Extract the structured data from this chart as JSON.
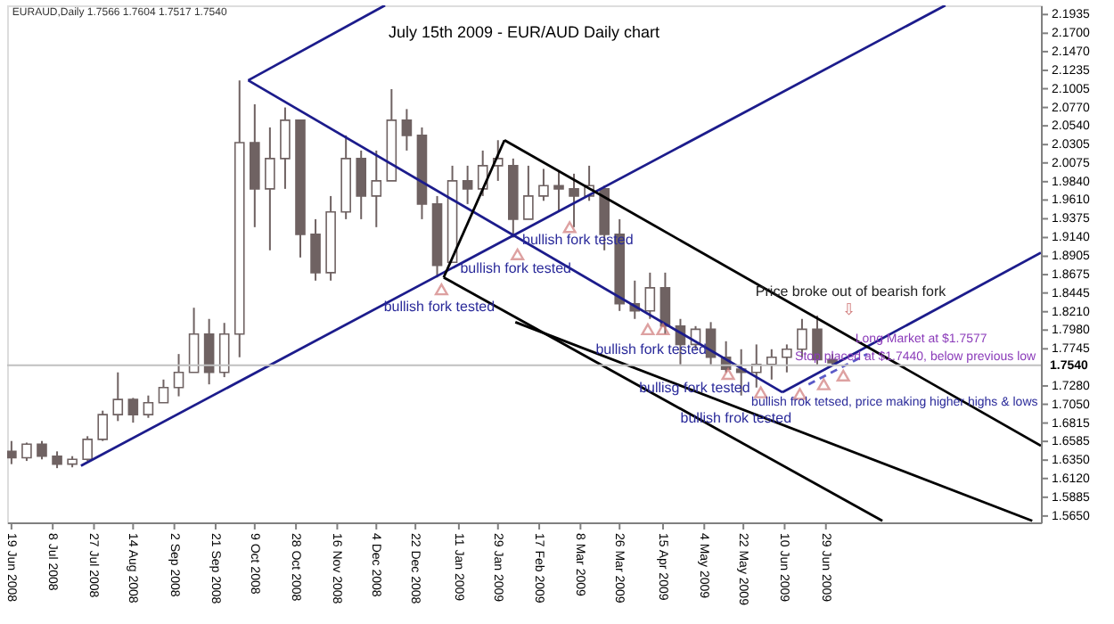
{
  "chart_data": {
    "type": "candlestick",
    "title": "July 15th 2009 - EUR/AUD Daily chart",
    "color": "#6f6262",
    "x": [
      "2008-06-19",
      "2008-06-26",
      "2008-07-03",
      "2008-07-10",
      "2008-07-17",
      "2008-07-24",
      "2008-07-31",
      "2008-08-07",
      "2008-08-14",
      "2008-08-21",
      "2008-08-28",
      "2008-09-04",
      "2008-09-11",
      "2008-09-18",
      "2008-09-25",
      "2008-10-02",
      "2008-10-09",
      "2008-10-16",
      "2008-10-23",
      "2008-10-30",
      "2008-11-06",
      "2008-11-13",
      "2008-11-20",
      "2008-11-27",
      "2008-12-04",
      "2008-12-11",
      "2008-12-18",
      "2008-12-25",
      "2009-01-01",
      "2009-01-08",
      "2009-01-15",
      "2009-01-22",
      "2009-01-29",
      "2009-02-05",
      "2009-02-12",
      "2009-02-19",
      "2009-02-26",
      "2009-03-05",
      "2009-03-12",
      "2009-03-19",
      "2009-03-26",
      "2009-04-02",
      "2009-04-09",
      "2009-04-16",
      "2009-04-23",
      "2009-04-30",
      "2009-05-07",
      "2009-05-14",
      "2009-05-21",
      "2009-05-28",
      "2009-06-04",
      "2009-06-11",
      "2009-06-18",
      "2009-06-25",
      "2009-07-02"
    ],
    "ohlc": [
      [
        1.646,
        1.659,
        1.63,
        1.638
      ],
      [
        1.638,
        1.657,
        1.634,
        1.655
      ],
      [
        1.655,
        1.659,
        1.636,
        1.64
      ],
      [
        1.64,
        1.646,
        1.625,
        1.63
      ],
      [
        1.63,
        1.64,
        1.626,
        1.636
      ],
      [
        1.636,
        1.665,
        1.634,
        1.661
      ],
      [
        1.661,
        1.697,
        1.659,
        1.692
      ],
      [
        1.692,
        1.745,
        1.684,
        1.711
      ],
      [
        1.711,
        1.713,
        1.682,
        1.692
      ],
      [
        1.692,
        1.716,
        1.688,
        1.707
      ],
      [
        1.707,
        1.736,
        1.707,
        1.726
      ],
      [
        1.726,
        1.768,
        1.715,
        1.745
      ],
      [
        1.745,
        1.826,
        1.745,
        1.793
      ],
      [
        1.793,
        1.812,
        1.73,
        1.745
      ],
      [
        1.745,
        1.807,
        1.739,
        1.793
      ],
      [
        1.793,
        2.111,
        1.764,
        2.033
      ],
      [
        2.033,
        2.081,
        1.927,
        1.975
      ],
      [
        1.975,
        2.052,
        1.898,
        2.013
      ],
      [
        2.013,
        2.077,
        1.975,
        2.061
      ],
      [
        2.061,
        2.061,
        1.889,
        1.918
      ],
      [
        1.918,
        1.937,
        1.86,
        1.87
      ],
      [
        1.87,
        1.966,
        1.86,
        1.946
      ],
      [
        1.946,
        2.042,
        1.937,
        2.013
      ],
      [
        2.013,
        2.023,
        1.937,
        1.966
      ],
      [
        1.966,
        2.023,
        1.927,
        1.985
      ],
      [
        1.985,
        2.1,
        1.985,
        2.061
      ],
      [
        2.061,
        2.075,
        2.023,
        2.042
      ],
      [
        2.042,
        2.052,
        1.937,
        1.956
      ],
      [
        1.956,
        1.966,
        1.864,
        1.879
      ],
      [
        1.883,
        2.004,
        1.883,
        1.985
      ],
      [
        1.985,
        2.004,
        1.956,
        1.975
      ],
      [
        1.975,
        2.023,
        1.966,
        2.004
      ],
      [
        2.004,
        2.036,
        1.985,
        2.013
      ],
      [
        2.004,
        2.013,
        1.914,
        1.937
      ],
      [
        1.937,
        2.004,
        1.937,
        1.966
      ],
      [
        1.966,
        2.0,
        1.96,
        1.979
      ],
      [
        1.979,
        1.998,
        1.946,
        1.975
      ],
      [
        1.975,
        1.994,
        1.927,
        1.966
      ],
      [
        1.966,
        2.004,
        1.96,
        1.979
      ],
      [
        1.975,
        1.979,
        1.898,
        1.918
      ],
      [
        1.918,
        1.937,
        1.822,
        1.831
      ],
      [
        1.831,
        1.86,
        1.812,
        1.822
      ],
      [
        1.822,
        1.87,
        1.812,
        1.851
      ],
      [
        1.851,
        1.87,
        1.793,
        1.803
      ],
      [
        1.803,
        1.812,
        1.755,
        1.78
      ],
      [
        1.78,
        1.803,
        1.774,
        1.799
      ],
      [
        1.799,
        1.808,
        1.755,
        1.764
      ],
      [
        1.764,
        1.784,
        1.745,
        1.749
      ],
      [
        1.749,
        1.774,
        1.716,
        1.745
      ],
      [
        1.745,
        1.78,
        1.726,
        1.755
      ],
      [
        1.755,
        1.774,
        1.736,
        1.764
      ],
      [
        1.764,
        1.78,
        1.745,
        1.774
      ],
      [
        1.774,
        1.812,
        1.764,
        1.799
      ],
      [
        1.799,
        1.816,
        1.755,
        1.761
      ],
      [
        1.761,
        1.768,
        1.753,
        1.757
      ]
    ],
    "series": [
      {
        "type": "line",
        "color": "#1c1c8c",
        "x": [
          "2008-07-21",
          "2009-08-23"
        ],
        "values": [
          1.628,
          2.205
        ]
      },
      {
        "type": "line",
        "color": "#1c1c8c",
        "x": [
          "2008-10-06",
          "2008-12-08"
        ],
        "values": [
          2.111,
          2.205
        ]
      },
      {
        "type": "line",
        "color": "#1c1c8c",
        "x": [
          "2008-10-06",
          "2009-06-09"
        ],
        "values": [
          2.111,
          1.72
        ]
      },
      {
        "type": "line",
        "color": "#1c1c8c",
        "x": [
          "2009-06-09",
          "2009-10-06"
        ],
        "values": [
          1.72,
          1.895
        ]
      },
      {
        "type": "line",
        "color": "#000000",
        "x": [
          "2009-01-04",
          "2009-02-01"
        ],
        "values": [
          1.864,
          2.036
        ]
      },
      {
        "type": "line",
        "color": "#000000",
        "x": [
          "2009-02-01",
          "2009-10-06"
        ],
        "values": [
          2.036,
          1.653
        ]
      },
      {
        "type": "line",
        "color": "#000000",
        "x": [
          "2009-01-04",
          "2009-07-25"
        ],
        "values": [
          1.864,
          1.559
        ]
      },
      {
        "type": "line",
        "color": "#000000",
        "x": [
          "2009-02-06",
          "2009-10-02"
        ],
        "values": [
          1.808,
          1.559
        ]
      },
      {
        "type": "line",
        "color": "#5a5ac8",
        "line_style": "dashed",
        "x": [
          "2009-06-21",
          "2009-07-18"
        ],
        "values": [
          1.73,
          1.768
        ]
      },
      {
        "type": "scatter",
        "marker": "triangle",
        "color": "#d07a7a",
        "x": [
          "2009-01-03",
          "2009-02-07",
          "2009-03-03",
          "2009-04-08",
          "2009-04-15",
          "2009-05-15",
          "2009-05-30",
          "2009-06-17",
          "2009-06-28",
          "2009-07-07"
        ],
        "values": [
          1.849,
          1.893,
          1.927,
          1.799,
          1.799,
          1.743,
          1.72,
          1.718,
          1.73,
          1.741
        ]
      }
    ],
    "xlim": [
      "2008-06-17",
      "2009-10-06"
    ],
    "xticks": [
      {
        "value": "2008-06-19",
        "label": "19 Jun 2008"
      },
      {
        "value": "2008-07-08",
        "label": "8 Jul 2008"
      },
      {
        "value": "2008-07-27",
        "label": "27 Jul 2008"
      },
      {
        "value": "2008-08-14",
        "label": "14 Aug 2008"
      },
      {
        "value": "2008-09-02",
        "label": "2 Sep 2008"
      },
      {
        "value": "2008-09-21",
        "label": "21 Sep 2008"
      },
      {
        "value": "2008-10-09",
        "label": "9 Oct 2008"
      },
      {
        "value": "2008-10-28",
        "label": "28 Oct 2008"
      },
      {
        "value": "2008-11-16",
        "label": "16 Nov 2008"
      },
      {
        "value": "2008-12-04",
        "label": "4 Dec 2008"
      },
      {
        "value": "2008-12-22",
        "label": "22 Dec 2008"
      },
      {
        "value": "2009-01-11",
        "label": "11 Jan 2009"
      },
      {
        "value": "2009-01-29",
        "label": "29 Jan 2009"
      },
      {
        "value": "2009-02-17",
        "label": "17 Feb 2009"
      },
      {
        "value": "2009-03-08",
        "label": "8 Mar 2009"
      },
      {
        "value": "2009-03-26",
        "label": "26 Mar 2009"
      },
      {
        "value": "2009-04-15",
        "label": "15 Apr 2009"
      },
      {
        "value": "2009-05-04",
        "label": "4 May 2009"
      },
      {
        "value": "2009-05-22",
        "label": "22 May 2009"
      },
      {
        "value": "2009-06-10",
        "label": "10 Jun 2009"
      },
      {
        "value": "2009-06-29",
        "label": "29 Jun 2009"
      }
    ],
    "ylim": [
      1.557,
      2.205
    ],
    "yticks": [
      {
        "value": 2.1935,
        "label": "2.1935"
      },
      {
        "value": 2.17,
        "label": "2.1700"
      },
      {
        "value": 2.147,
        "label": "2.1470"
      },
      {
        "value": 2.1235,
        "label": "2.1235"
      },
      {
        "value": 2.1005,
        "label": "2.1005"
      },
      {
        "value": 2.077,
        "label": "2.0770"
      },
      {
        "value": 2.054,
        "label": "2.0540"
      },
      {
        "value": 2.0305,
        "label": "2.0305"
      },
      {
        "value": 2.0075,
        "label": "2.0075"
      },
      {
        "value": 1.984,
        "label": "1.9840"
      },
      {
        "value": 1.961,
        "label": "1.9610"
      },
      {
        "value": 1.9375,
        "label": "1.9375"
      },
      {
        "value": 1.914,
        "label": "1.9140"
      },
      {
        "value": 1.8905,
        "label": "1.8905"
      },
      {
        "value": 1.8675,
        "label": "1.8675"
      },
      {
        "value": 1.8445,
        "label": "1.8445"
      },
      {
        "value": 1.821,
        "label": "1.8210"
      },
      {
        "value": 1.798,
        "label": "1.7980"
      },
      {
        "value": 1.7745,
        "label": "1.7745"
      },
      {
        "value": 1.728,
        "label": "1.7280"
      },
      {
        "value": 1.705,
        "label": "1.7050"
      },
      {
        "value": 1.6815,
        "label": "1.6815"
      },
      {
        "value": 1.6585,
        "label": "1.6585"
      },
      {
        "value": 1.635,
        "label": "1.6350"
      },
      {
        "value": 1.612,
        "label": "1.6120"
      },
      {
        "value": 1.5885,
        "label": "1.5885"
      },
      {
        "value": 1.565,
        "label": "1.5650"
      }
    ],
    "ref_lines": [
      {
        "axis": "y",
        "value": 1.754,
        "label": "1.7540",
        "color": "#c0c0c0"
      }
    ],
    "annotations": [
      "EURAUD,Daily 1.7566 1.7604 1.7517 1.7540",
      "bullish fork tested",
      "bullish fork tested",
      "bullish fork tested",
      "bullish fork tested",
      "bullisg fork tested",
      "bullish frok tested",
      "bullish frok tetsed, price making higher highs & lows",
      "Price broke out of bearish fork",
      "⇩",
      "Long Market at $1.7577",
      "Stop placed at $1.7440, below previous low"
    ],
    "grid": false
  }
}
